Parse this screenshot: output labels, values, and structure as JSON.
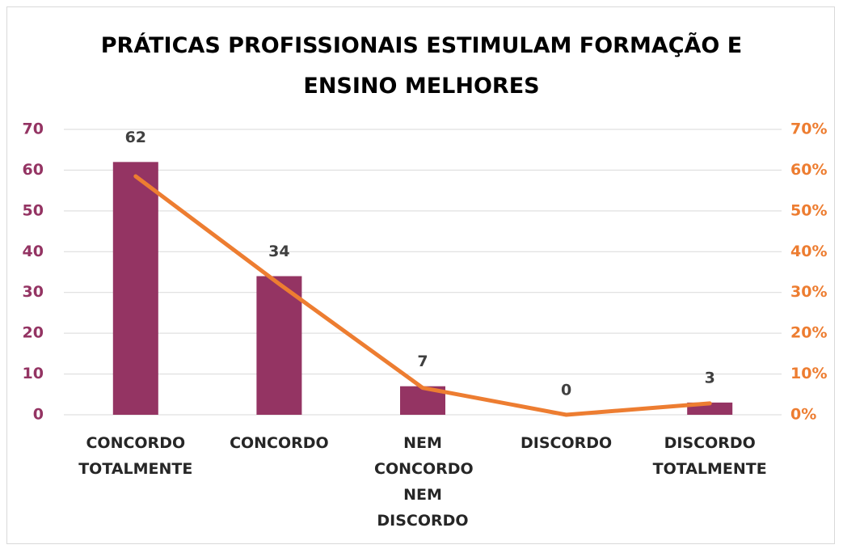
{
  "chart_data": {
    "type": "bar",
    "title": "PRÁTICAS PROFISSIONAIS ESTIMULAM FORMAÇÃO E ENSINO MELHORES",
    "categories": [
      "CONCORDO TOTALMENTE",
      "CONCORDO",
      "NEM CONCORDO NEM DISCORDO",
      "DISCORDO",
      "DISCORDO TOTALMENTE"
    ],
    "series": [
      {
        "type": "bar",
        "color": "#943463",
        "values": [
          62,
          34,
          7,
          0,
          3
        ]
      },
      {
        "type": "line",
        "axis": "y2",
        "color": "#ed7d31",
        "values": [
          58.5,
          32.1,
          6.6,
          0,
          2.8
        ]
      }
    ],
    "ylim": [
      0,
      70
    ],
    "yticks": [
      0,
      10,
      20,
      30,
      40,
      50,
      60,
      70
    ],
    "y2lim": [
      0,
      70
    ],
    "y2ticks": [
      {
        "value": 0,
        "label": "0%"
      },
      {
        "value": 10,
        "label": "10%"
      },
      {
        "value": 20,
        "label": "20%"
      },
      {
        "value": 30,
        "label": "30%"
      },
      {
        "value": 40,
        "label": "40%"
      },
      {
        "value": 50,
        "label": "50%"
      },
      {
        "value": 60,
        "label": "60%"
      },
      {
        "value": 70,
        "label": "70%"
      }
    ],
    "grid": true,
    "data_labels": true
  }
}
